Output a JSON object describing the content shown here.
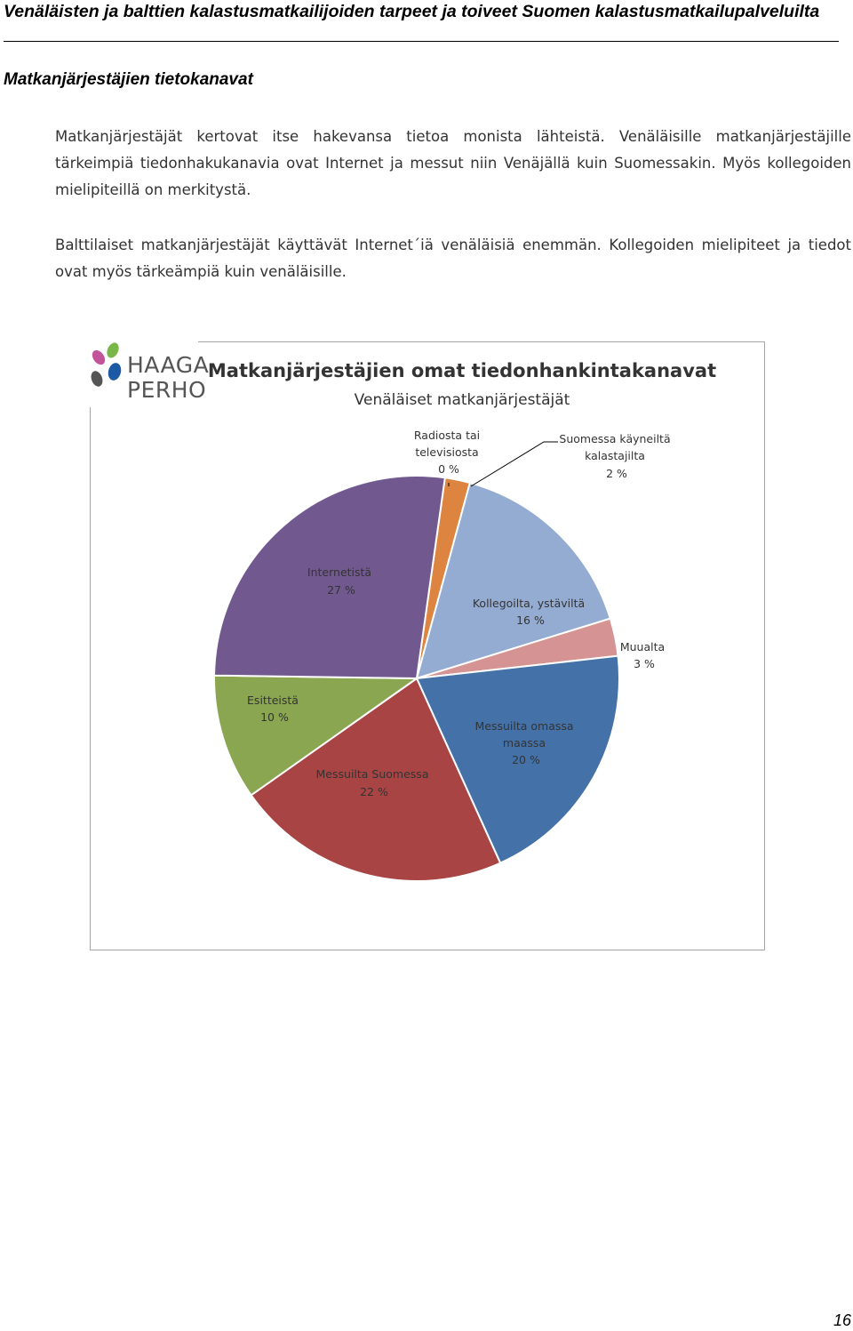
{
  "header": {
    "title": "Venäläisten ja balttien kalastusmatkailijoiden tarpeet ja toiveet Suomen kalastusmatkailupalveluilta"
  },
  "section": {
    "heading": "Matkanjärjestäjien tietokanavat"
  },
  "paragraphs": [
    "Matkanjärjestäjät kertovat itse hakevansa tietoa monista lähteistä. Venäläisille matkanjärjestäjille tärkeimpiä tiedonhakukanavia ovat Internet ja messut niin Venäjällä kuin Suomessakin. Myös kollegoiden mielipiteillä on merkitystä.",
    "Balttilaiset matkanjärjestäjät käyttävät Internet´iä venäläisiä enemmän. Kollegoiden mielipiteet ja tiedot ovat myös tärkeämpiä kuin venäläisille."
  ],
  "logo": {
    "line1": "HAAGA",
    "line2": "PERHO",
    "colors": [
      "#7ab648",
      "#c3549a",
      "#1c5aa6",
      "#555555"
    ]
  },
  "chart_data": {
    "type": "pie",
    "title": "Matkanjärjestäjien omat tiedonhankintakanavat",
    "subtitle": "Venäläiset matkanjärjestäjät",
    "slices": [
      {
        "label": "Radiosta tai televisiosta",
        "percent_label": "0 %",
        "value": 0,
        "color": "#c8a400"
      },
      {
        "label": "Suomessa käyneiltä kalastajilta",
        "percent_label": "2 %",
        "value": 2,
        "color": "#dd8440"
      },
      {
        "label": "Kollegoilta, ystäviltä",
        "percent_label": "16 %",
        "value": 16,
        "color": "#95acd2"
      },
      {
        "label": "Muualta",
        "percent_label": "3 %",
        "value": 3,
        "color": "#d69393"
      },
      {
        "label": "Messuilta omassa maassa",
        "percent_label": "20 %",
        "value": 20,
        "color": "#4472a8"
      },
      {
        "label": "Messuilta Suomessa",
        "percent_label": "22 %",
        "value": 22,
        "color": "#a84444"
      },
      {
        "label": "Esitteistä",
        "percent_label": "10 %",
        "value": 10,
        "color": "#8aa650"
      },
      {
        "label": "Internetistä",
        "percent_label": "27 %",
        "value": 27,
        "color": "#71598f"
      }
    ]
  },
  "footer": {
    "page_number": "16"
  }
}
